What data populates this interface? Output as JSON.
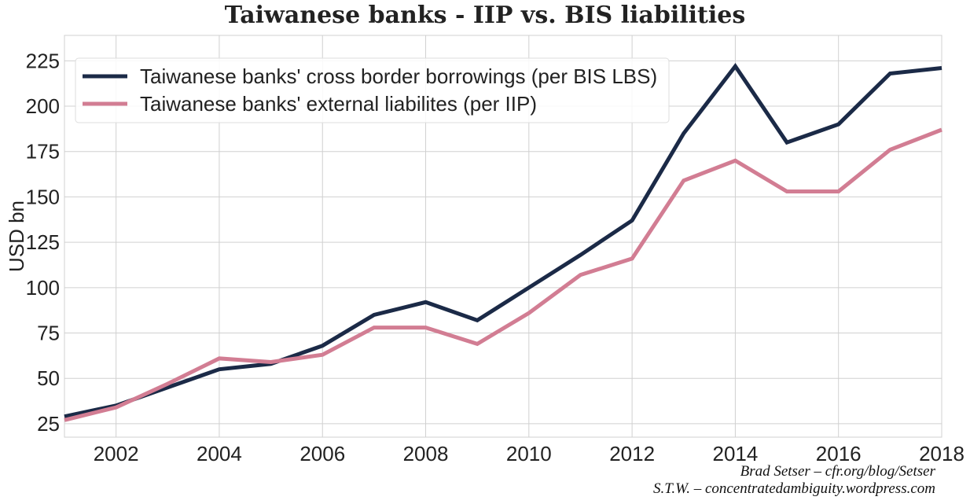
{
  "chart_data": {
    "type": "line",
    "title": "Taiwanese banks - IIP vs. BIS liabilities",
    "xlabel": "",
    "ylabel": "USD bn",
    "xlim": [
      2001,
      2018
    ],
    "ylim": [
      17.6,
      239
    ],
    "grid": true,
    "legend_position": "top-left",
    "xticks": [
      2002,
      2004,
      2006,
      2008,
      2010,
      2012,
      2014,
      2016,
      2018
    ],
    "yticks": [
      25,
      50,
      75,
      100,
      125,
      150,
      175,
      200,
      225
    ],
    "x": [
      2001,
      2002,
      2003,
      2004,
      2005,
      2006,
      2007,
      2008,
      2009,
      2010,
      2011,
      2012,
      2013,
      2014,
      2015,
      2016,
      2017,
      2018
    ],
    "series": [
      {
        "name": "Taiwanese banks' cross border borrowings (per BIS LBS)",
        "color": "#1b2a47",
        "values": [
          29,
          35,
          45,
          55,
          58,
          68,
          85,
          92,
          82,
          100,
          118,
          137,
          185,
          222,
          180,
          190,
          218,
          221
        ]
      },
      {
        "name": "Taiwanese banks' external liabilites (per IIP)",
        "color": "#d27d93",
        "values": [
          27,
          34,
          47,
          61,
          59,
          63,
          78,
          78,
          69,
          86,
          107,
          116,
          159,
          170,
          153,
          153,
          176,
          187
        ]
      }
    ]
  },
  "credits": [
    "Brad Setser – cfr.org/blog/Setser",
    "S.T.W. – concentratedambiguity.wordpress.com"
  ]
}
